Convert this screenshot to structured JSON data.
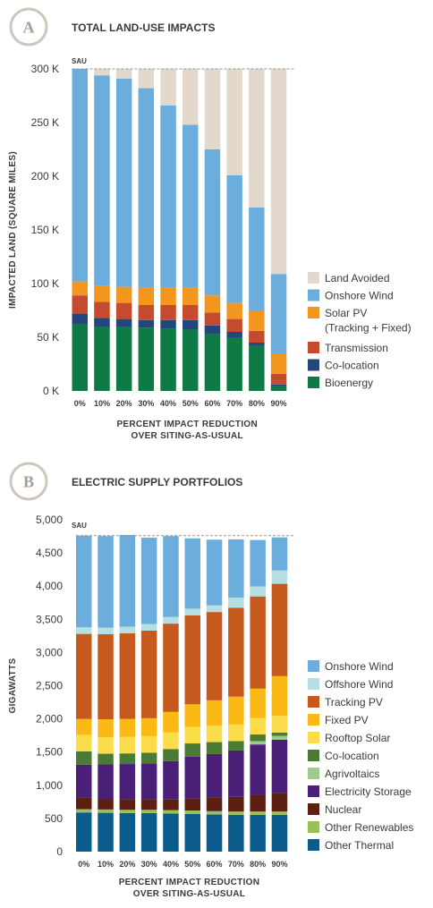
{
  "chart_data": [
    {
      "type": "bar",
      "stacked": true,
      "badge": "A",
      "title": "TOTAL LAND-USE IMPACTS",
      "ylabel": "IMPACTED LAND (SQUARE MILES)",
      "xlabel_lines": [
        "PERCENT IMPACT REDUCTION",
        "OVER SITING-AS-USUAL"
      ],
      "ylim": [
        0,
        300000
      ],
      "yticks": [
        0,
        50000,
        100000,
        150000,
        200000,
        250000,
        300000
      ],
      "ytick_labels": [
        "0 K",
        "50 K",
        "100 K",
        "150 K",
        "200 K",
        "250 K",
        "300 K"
      ],
      "reference_line": {
        "label": "SAU",
        "value": 300000
      },
      "categories": [
        "0%",
        "10%",
        "20%",
        "30%",
        "40%",
        "50%",
        "60%",
        "70%",
        "80%",
        "90%"
      ],
      "series": [
        {
          "name": "Bioenergy",
          "color": "#0e7a45",
          "values": [
            62000,
            60000,
            60000,
            59000,
            58000,
            57000,
            53000,
            50000,
            42000,
            5000
          ]
        },
        {
          "name": "Co-location",
          "color": "#22477a",
          "values": [
            10000,
            8000,
            7000,
            7000,
            8000,
            9000,
            8000,
            5000,
            3000,
            1000
          ]
        },
        {
          "name": "Transmission",
          "color": "#c64b2e",
          "values": [
            17000,
            15000,
            15000,
            14000,
            14000,
            14000,
            12000,
            12000,
            11000,
            10000
          ]
        },
        {
          "name": "Solar PV",
          "name_line2": "(Tracking + Fixed)",
          "color": "#f3961e",
          "values": [
            13000,
            15000,
            15000,
            16000,
            16000,
            16000,
            16000,
            15000,
            19000,
            19000
          ]
        },
        {
          "name": "Onshore Wind",
          "color": "#6baedd",
          "values": [
            198000,
            196000,
            194000,
            186000,
            170000,
            152000,
            136000,
            119000,
            96000,
            74000
          ]
        },
        {
          "name": "Land Avoided",
          "color": "#e2d8cc",
          "values": [
            0,
            6000,
            9000,
            18000,
            34000,
            52000,
            75000,
            99000,
            129000,
            191000
          ]
        }
      ],
      "legend_order": [
        "Land Avoided",
        "Onshore Wind",
        "Solar PV",
        "Transmission",
        "Co-location",
        "Bioenergy"
      ],
      "legend_position": "right"
    },
    {
      "type": "bar",
      "stacked": true,
      "badge": "B",
      "title": "ELECTRIC SUPPLY PORTFOLIOS",
      "ylabel": "GIGAWATTS",
      "xlabel_lines": [
        "PERCENT IMPACT REDUCTION",
        "OVER SITING-AS-USUAL"
      ],
      "ylim": [
        0,
        5000
      ],
      "yticks": [
        0,
        500,
        1000,
        1500,
        2000,
        2500,
        3000,
        3500,
        4000,
        4500,
        5000
      ],
      "ytick_labels": [
        "0",
        "500",
        "1,000",
        "1,500",
        "2,000",
        "2,500",
        "3,000",
        "3,500",
        "4,000",
        "4,500",
        "5,000"
      ],
      "reference_line": {
        "label": "SAU",
        "value": 4760
      },
      "categories": [
        "0%",
        "10%",
        "20%",
        "30%",
        "40%",
        "50%",
        "60%",
        "70%",
        "80%",
        "90%"
      ],
      "series": [
        {
          "name": "Other Thermal",
          "color": "#0b5c8c",
          "values": [
            590,
            585,
            580,
            580,
            575,
            570,
            560,
            555,
            555,
            555
          ]
        },
        {
          "name": "Other Renewables",
          "color": "#97c25a",
          "values": [
            50,
            50,
            50,
            50,
            50,
            50,
            50,
            50,
            50,
            50
          ]
        },
        {
          "name": "Nuclear",
          "color": "#5c1f12",
          "values": [
            170,
            160,
            160,
            160,
            160,
            180,
            200,
            220,
            250,
            280
          ]
        },
        {
          "name": "Electricity Storage",
          "color": "#4a1f78",
          "values": [
            500,
            520,
            530,
            540,
            580,
            630,
            660,
            700,
            760,
            800
          ]
        },
        {
          "name": "Agrivoltaics",
          "color": "#9dcb8c",
          "values": [
            0,
            0,
            0,
            0,
            0,
            0,
            0,
            0,
            50,
            60
          ]
        },
        {
          "name": "Co-location",
          "color": "#4a7a33",
          "values": [
            200,
            160,
            160,
            160,
            180,
            200,
            180,
            140,
            100,
            50
          ]
        },
        {
          "name": "Rooftop Solar",
          "color": "#fbdc4a",
          "values": [
            250,
            250,
            250,
            250,
            250,
            250,
            250,
            250,
            250,
            250
          ]
        },
        {
          "name": "Fixed PV",
          "color": "#fbb915",
          "values": [
            240,
            270,
            270,
            270,
            310,
            340,
            380,
            420,
            440,
            600
          ]
        },
        {
          "name": "Tracking PV",
          "color": "#c65a1c",
          "values": [
            1280,
            1280,
            1290,
            1320,
            1330,
            1340,
            1330,
            1340,
            1390,
            1390
          ]
        },
        {
          "name": "Offshore Wind",
          "color": "#b5dfe2",
          "values": [
            100,
            100,
            100,
            100,
            100,
            100,
            100,
            150,
            150,
            200
          ]
        },
        {
          "name": "Onshore Wind",
          "color": "#6baedd",
          "values": [
            1380,
            1380,
            1380,
            1300,
            1220,
            1060,
            990,
            880,
            700,
            500
          ]
        }
      ],
      "legend_order": [
        "Onshore Wind",
        "Offshore Wind",
        "Tracking PV",
        "Fixed PV",
        "Rooftop Solar",
        "Co-location",
        "Agrivoltaics",
        "Electricity Storage",
        "Nuclear",
        "Other Renewables",
        "Other Thermal"
      ],
      "legend_position": "right"
    }
  ]
}
